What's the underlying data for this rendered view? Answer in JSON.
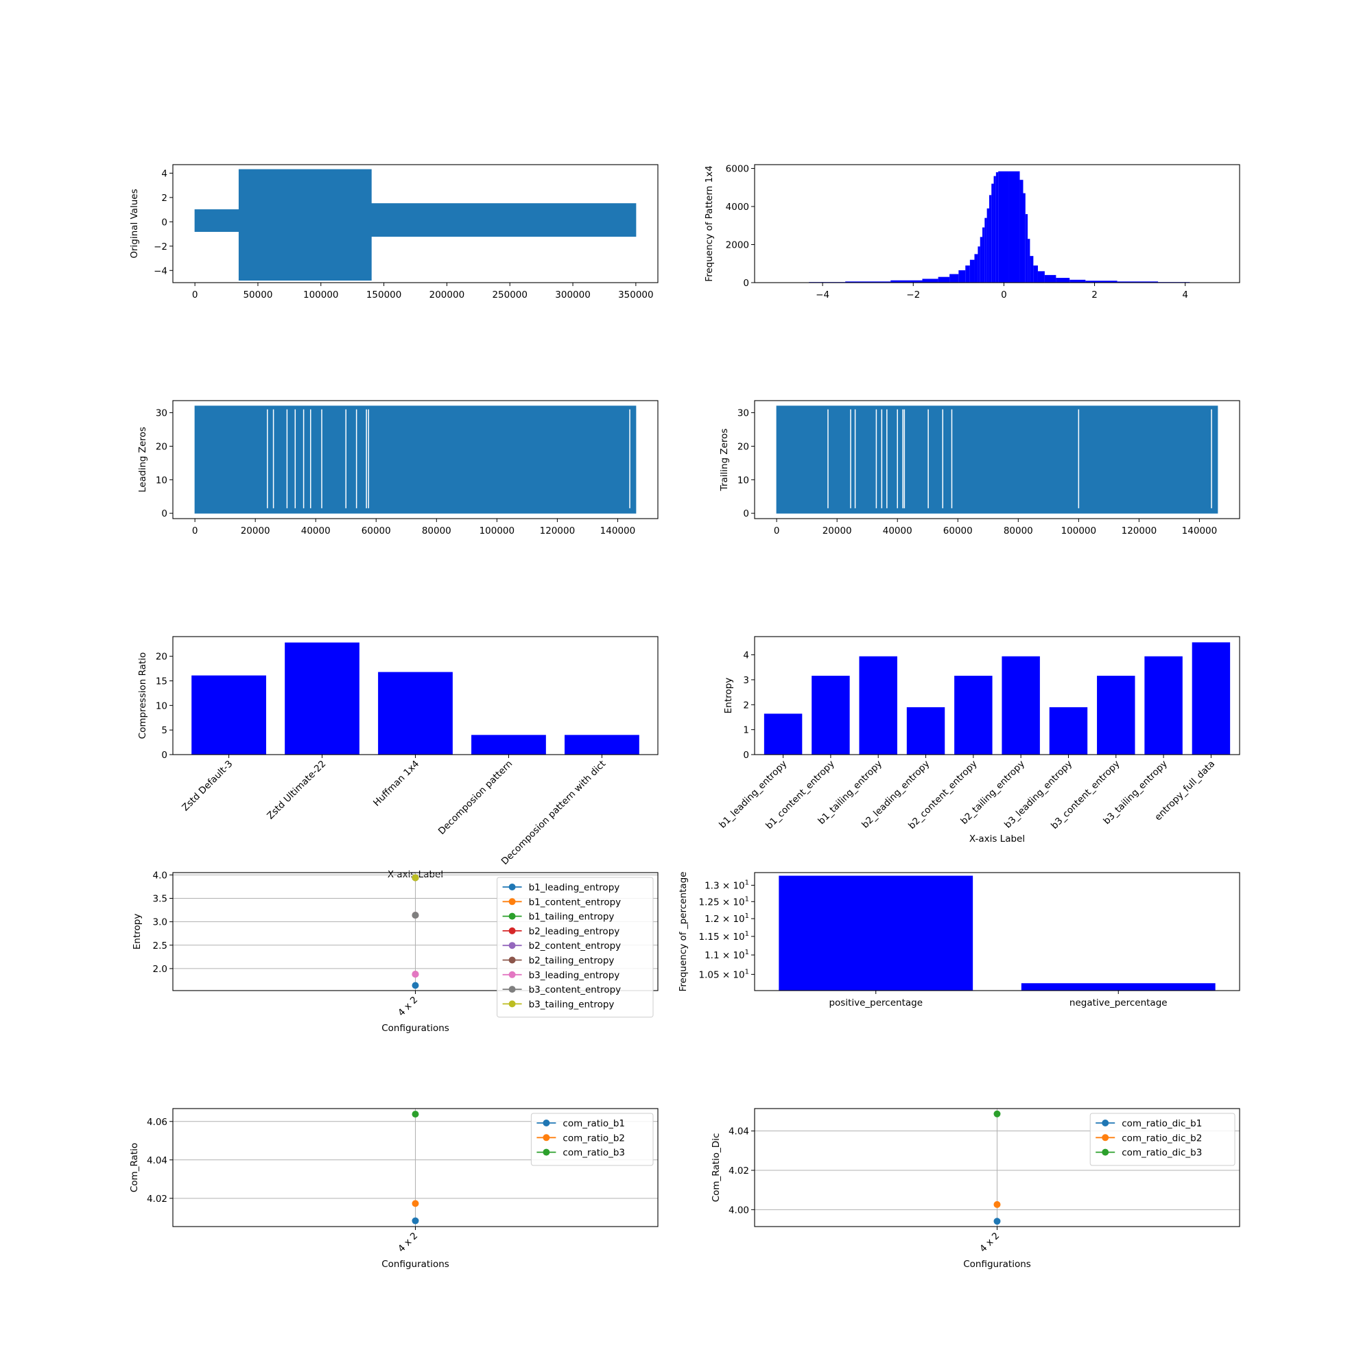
{
  "colors": {
    "bar": "#0000ff",
    "line": "#1f77b4",
    "grid": "#b0b0b0",
    "palette": [
      "#1f77b4",
      "#ff7f0e",
      "#2ca02c",
      "#d62728",
      "#9467bd",
      "#8c564b",
      "#e377c2",
      "#7f7f7f",
      "#bcbd22"
    ]
  },
  "chart_data": [
    {
      "id": "original-values",
      "type": "line",
      "title": "",
      "xlabel": "",
      "ylabel": "Original Values",
      "xlim": [
        -17500,
        367500
      ],
      "ylim": [
        -5,
        4.7
      ],
      "xticks": [
        0,
        50000,
        100000,
        150000,
        200000,
        250000,
        300000,
        350000
      ],
      "xtick_labels": [
        "0",
        "50000",
        "100000",
        "150000",
        "200000",
        "250000",
        "300000",
        "350000"
      ],
      "yticks": [
        -4,
        -2,
        0,
        2,
        4
      ],
      "ytick_labels": [
        "−4",
        "−2",
        "0",
        "2",
        "4"
      ],
      "series": [
        {
          "x": [
            0,
            35000,
            35000,
            140000,
            140000,
            350000
          ],
          "y_low": [
            -0.8,
            -0.8,
            -4.8,
            -4.8,
            -1.2,
            -1.2
          ],
          "y_high": [
            1.0,
            1.0,
            4.3,
            4.3,
            1.5,
            1.5
          ]
        }
      ],
      "grid": false
    },
    {
      "id": "pattern-histogram",
      "type": "bar",
      "title": "",
      "xlabel": "",
      "ylabel": "Frequency of Pattern 1x4",
      "xlim": [
        -5.5,
        5.2
      ],
      "ylim": [
        0,
        6200
      ],
      "xticks": [
        -4,
        -2,
        0,
        2,
        4
      ],
      "xtick_labels": [
        "−4",
        "−2",
        "0",
        "2",
        "4"
      ],
      "yticks": [
        0,
        2000,
        4000,
        6000
      ],
      "ytick_labels": [
        "0",
        "2000",
        "4000",
        "6000"
      ],
      "x": [
        -4.0,
        -3.0,
        -2.0,
        -1.6,
        -1.3,
        -1.1,
        -0.9,
        -0.8,
        -0.7,
        -0.6,
        -0.55,
        -0.5,
        -0.45,
        -0.4,
        -0.35,
        -0.3,
        -0.25,
        -0.2,
        -0.15,
        -0.1,
        0.3,
        0.4,
        0.45,
        0.5,
        0.55,
        0.6,
        0.7,
        0.8,
        1.0,
        1.3,
        1.6,
        2.0,
        3.0,
        3.8
      ],
      "values": [
        30,
        60,
        120,
        200,
        300,
        450,
        650,
        900,
        1200,
        1500,
        1900,
        2400,
        2900,
        3400,
        3900,
        4600,
        5200,
        5600,
        5800,
        5850,
        5850,
        5400,
        4700,
        3600,
        2300,
        1400,
        900,
        600,
        400,
        250,
        150,
        100,
        60,
        30
      ],
      "grid": false
    },
    {
      "id": "leading-zeros",
      "type": "line",
      "title": "",
      "xlabel": "",
      "ylabel": "Leading Zeros",
      "xlim": [
        -7300,
        153300
      ],
      "ylim": [
        -1.6,
        33.6
      ],
      "xticks": [
        0,
        20000,
        40000,
        60000,
        80000,
        100000,
        120000,
        140000
      ],
      "xtick_labels": [
        "0",
        "20000",
        "40000",
        "60000",
        "80000",
        "100000",
        "120000",
        "140000"
      ],
      "yticks": [
        0,
        10,
        20,
        30
      ],
      "ytick_labels": [
        "0",
        "10",
        "20",
        "30"
      ],
      "series": [
        {
          "x": [
            0,
            146000
          ],
          "y_low": [
            0,
            0
          ],
          "y_high": [
            32,
            32
          ]
        }
      ],
      "gaps_x": [
        24000,
        26000,
        30500,
        33200,
        36000,
        38300,
        42000,
        50000,
        53500,
        56800,
        57500,
        144000
      ],
      "grid": false
    },
    {
      "id": "trailing-zeros",
      "type": "line",
      "title": "",
      "xlabel": "",
      "ylabel": "Trailing Zeros",
      "xlim": [
        -7300,
        153300
      ],
      "ylim": [
        -1.6,
        33.6
      ],
      "xticks": [
        0,
        20000,
        40000,
        60000,
        80000,
        100000,
        120000,
        140000
      ],
      "xtick_labels": [
        "0",
        "20000",
        "40000",
        "60000",
        "80000",
        "100000",
        "120000",
        "140000"
      ],
      "yticks": [
        0,
        10,
        20,
        30
      ],
      "ytick_labels": [
        "0",
        "10",
        "20",
        "30"
      ],
      "series": [
        {
          "x": [
            0,
            146000
          ],
          "y_low": [
            0,
            0
          ],
          "y_high": [
            32,
            32
          ]
        }
      ],
      "gaps_x": [
        17000,
        24500,
        26000,
        33000,
        34800,
        36500,
        40000,
        41800,
        42300,
        50200,
        55000,
        58000,
        100000,
        144000
      ],
      "grid": false
    },
    {
      "id": "compression-ratio",
      "type": "bar",
      "title": "",
      "xlabel": "X-axis Label",
      "ylabel": "Compression Ratio",
      "ylim": [
        0,
        24
      ],
      "categories": [
        "Zstd Default-3",
        "Zstd Ultimate-22",
        "Huffman 1x4",
        "Decomposion pattern",
        "Decomposion pattern with dict"
      ],
      "values": [
        16.1,
        22.8,
        16.8,
        4.0,
        4.0
      ],
      "yticks": [
        0,
        5,
        10,
        15,
        20
      ],
      "ytick_labels": [
        "0",
        "5",
        "10",
        "15",
        "20"
      ],
      "grid": false
    },
    {
      "id": "entropy",
      "type": "bar",
      "title": "",
      "xlabel": "X-axis Label",
      "ylabel": "Entropy",
      "ylim": [
        0,
        4.73
      ],
      "categories": [
        "b1_leading_entropy",
        "b1_content_entropy",
        "b1_tailing_entropy",
        "b2_leading_entropy",
        "b2_content_entropy",
        "b2_tailing_entropy",
        "b3_leading_entropy",
        "b3_content_entropy",
        "b3_tailing_entropy",
        "entropy_full_data"
      ],
      "values": [
        1.64,
        3.16,
        3.94,
        1.9,
        3.16,
        3.94,
        1.9,
        3.16,
        3.94,
        4.5
      ],
      "yticks": [
        0,
        1,
        2,
        3,
        4
      ],
      "ytick_labels": [
        "0",
        "1",
        "2",
        "3",
        "4"
      ],
      "grid": false
    },
    {
      "id": "entropy-configs",
      "type": "scatter",
      "title": "",
      "xlabel": "Configurations",
      "ylabel": "Entropy",
      "ylim": [
        1.53,
        4.05
      ],
      "categories": [
        "4 x 2"
      ],
      "yticks": [
        2.0,
        2.5,
        3.0,
        3.5,
        4.0
      ],
      "ytick_labels": [
        "2.0",
        "2.5",
        "3.0",
        "3.5",
        "4.0"
      ],
      "series": [
        {
          "name": "b1_leading_entropy",
          "values": [
            1.64
          ]
        },
        {
          "name": "b1_content_entropy",
          "values": [
            3.14
          ]
        },
        {
          "name": "b1_tailing_entropy",
          "values": [
            3.94
          ]
        },
        {
          "name": "b2_leading_entropy",
          "values": [
            1.88
          ]
        },
        {
          "name": "b2_content_entropy",
          "values": [
            3.14
          ]
        },
        {
          "name": "b2_tailing_entropy",
          "values": [
            3.94
          ]
        },
        {
          "name": "b3_leading_entropy",
          "values": [
            1.88
          ]
        },
        {
          "name": "b3_content_entropy",
          "values": [
            3.14
          ]
        },
        {
          "name": "b3_tailing_entropy",
          "values": [
            3.94
          ]
        }
      ],
      "legend": "upper right",
      "grid": true
    },
    {
      "id": "sign-percentage",
      "type": "bar",
      "title": "",
      "xlabel": "",
      "ylabel": "Frequency of _percentage",
      "scale_y": "log",
      "ylim": [
        10.1,
        13.4
      ],
      "categories": [
        "positive_percentage",
        "negative_percentage"
      ],
      "values": [
        13.3,
        10.28
      ],
      "yticks": [
        10.5,
        11.0,
        11.5,
        12.0,
        12.5,
        13.0
      ],
      "ytick_mantissas": [
        "1.05",
        "1.1",
        "1.15",
        "1.2",
        "1.25",
        "1.3"
      ],
      "ytick_base": "10",
      "ytick_exp": "1",
      "ytick_times": "×",
      "grid": false
    },
    {
      "id": "com-ratio",
      "type": "scatter",
      "title": "",
      "xlabel": "Configurations",
      "ylabel": "Com_Ratio",
      "ylim": [
        4.0053,
        4.0667
      ],
      "categories": [
        "4 x 2"
      ],
      "yticks": [
        4.02,
        4.04,
        4.06
      ],
      "ytick_labels": [
        "4.02",
        "4.04",
        "4.06"
      ],
      "series": [
        {
          "name": "com_ratio_b1",
          "values": [
            4.0083
          ]
        },
        {
          "name": "com_ratio_b2",
          "values": [
            4.0173
          ]
        },
        {
          "name": "com_ratio_b3",
          "values": [
            4.0638
          ]
        }
      ],
      "legend": "upper right",
      "grid": true
    },
    {
      "id": "com-ratio-dic",
      "type": "scatter",
      "title": "",
      "xlabel": "Configurations",
      "ylabel": "Com_Ratio_Dic",
      "ylim": [
        3.9914,
        4.0514
      ],
      "categories": [
        "4 x 2"
      ],
      "yticks": [
        4.0,
        4.02,
        4.04
      ],
      "ytick_labels": [
        "4.00",
        "4.02",
        "4.04"
      ],
      "series": [
        {
          "name": "com_ratio_dic_b1",
          "values": [
            3.9941
          ]
        },
        {
          "name": "com_ratio_dic_b2",
          "values": [
            4.0026
          ]
        },
        {
          "name": "com_ratio_dic_b3",
          "values": [
            4.0487
          ]
        }
      ],
      "legend": "upper right",
      "grid": true
    }
  ]
}
